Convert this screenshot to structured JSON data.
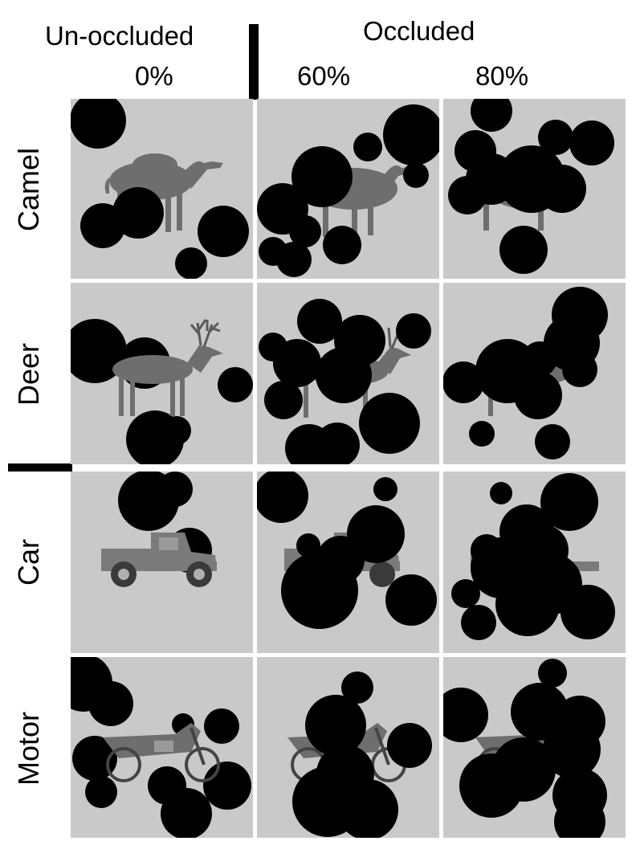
{
  "header": {
    "unoccluded_label": "Un-occluded",
    "occluded_label": "Occluded",
    "levels": [
      "0%",
      "60%",
      "80%"
    ]
  },
  "rows": [
    {
      "label": "Camel",
      "object": "camel"
    },
    {
      "label": "Deer",
      "object": "deer"
    },
    {
      "label": "Car",
      "object": "car"
    },
    {
      "label": "Motor",
      "object": "motorcycle"
    }
  ],
  "colors": {
    "cell_background": "#c9c9c9",
    "occluder": "#000000",
    "grid_gap": "#ffffff"
  }
}
